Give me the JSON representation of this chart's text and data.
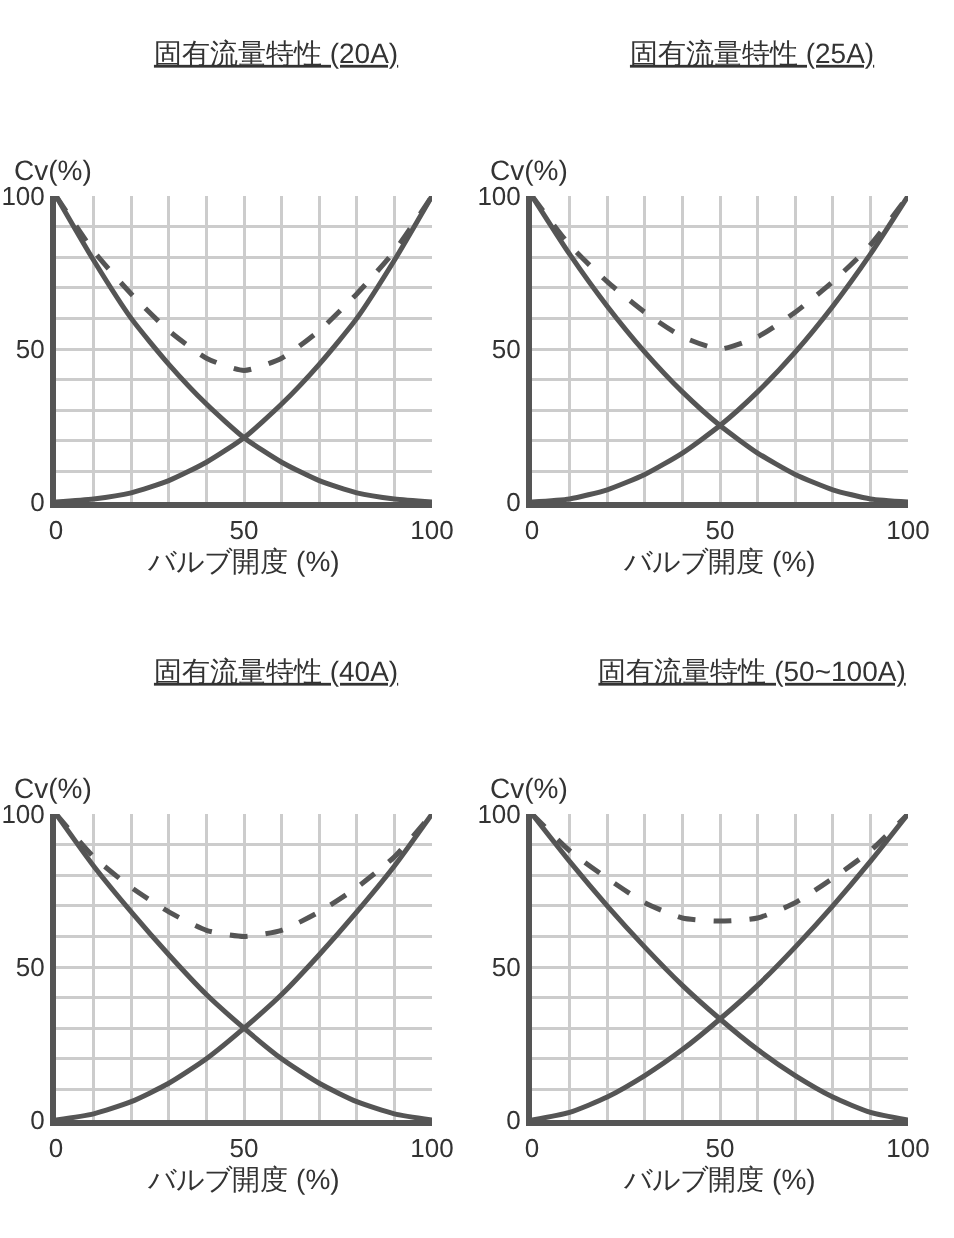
{
  "chart_data": [
    {
      "type": "line",
      "title": "固有流量特性 (20A)",
      "ylabel": "Cv(%)",
      "xlabel": "バルブ開度 (%)",
      "x": [
        0,
        10,
        20,
        30,
        40,
        50,
        60,
        70,
        80,
        90,
        100
      ],
      "xlim": [
        0,
        100
      ],
      "ylim": [
        0,
        100
      ],
      "xticks": [
        0,
        {
          "value": 10,
          "label": null
        },
        {
          "value": 20,
          "label": null
        },
        {
          "value": 30,
          "label": null
        },
        {
          "value": 40,
          "label": null
        },
        50,
        {
          "value": 60,
          "label": null
        },
        {
          "value": 70,
          "label": null
        },
        {
          "value": 80,
          "label": null
        },
        {
          "value": 90,
          "label": null
        },
        100
      ],
      "yticks": [
        0,
        {
          "value": 10,
          "label": null
        },
        {
          "value": 20,
          "label": null
        },
        {
          "value": 30,
          "label": null
        },
        {
          "value": 40,
          "label": null
        },
        50,
        {
          "value": 60,
          "label": null
        },
        {
          "value": 70,
          "label": null
        },
        {
          "value": 80,
          "label": null
        },
        {
          "value": 90,
          "label": null
        },
        100
      ],
      "grid": true,
      "series": [
        {
          "color": "#555555",
          "values": [
            0,
            1,
            3,
            7,
            13,
            21,
            32,
            45,
            60,
            79,
            100
          ]
        },
        {
          "color": "#555555",
          "values": [
            100,
            79,
            60,
            45,
            32,
            21,
            13,
            7,
            3,
            1,
            0
          ]
        },
        {
          "color": "#555555",
          "line_style": "dashed",
          "values": [
            100,
            82,
            68,
            56,
            47,
            43,
            47,
            56,
            68,
            82,
            100
          ]
        }
      ]
    },
    {
      "type": "line",
      "title": "固有流量特性 (25A)",
      "ylabel": "Cv(%)",
      "xlabel": "バルブ開度 (%)",
      "x": [
        0,
        10,
        20,
        30,
        40,
        50,
        60,
        70,
        80,
        90,
        100
      ],
      "xlim": [
        0,
        100
      ],
      "ylim": [
        0,
        100
      ],
      "xticks": [
        0,
        {
          "value": 10,
          "label": null
        },
        {
          "value": 20,
          "label": null
        },
        {
          "value": 30,
          "label": null
        },
        {
          "value": 40,
          "label": null
        },
        50,
        {
          "value": 60,
          "label": null
        },
        {
          "value": 70,
          "label": null
        },
        {
          "value": 80,
          "label": null
        },
        {
          "value": 90,
          "label": null
        },
        100
      ],
      "yticks": [
        0,
        {
          "value": 10,
          "label": null
        },
        {
          "value": 20,
          "label": null
        },
        {
          "value": 30,
          "label": null
        },
        {
          "value": 40,
          "label": null
        },
        50,
        {
          "value": 60,
          "label": null
        },
        {
          "value": 70,
          "label": null
        },
        {
          "value": 80,
          "label": null
        },
        {
          "value": 90,
          "label": null
        },
        100
      ],
      "grid": true,
      "series": [
        {
          "color": "#555555",
          "values": [
            0,
            1,
            4,
            9,
            16,
            25,
            36,
            49,
            64,
            81,
            100
          ]
        },
        {
          "color": "#555555",
          "values": [
            100,
            81,
            64,
            49,
            36,
            25,
            16,
            9,
            4,
            1,
            0
          ]
        },
        {
          "color": "#555555",
          "line_style": "dashed",
          "values": [
            100,
            84,
            72,
            62,
            54,
            50,
            54,
            62,
            72,
            84,
            100
          ]
        }
      ]
    },
    {
      "type": "line",
      "title": "固有流量特性 (40A)",
      "ylabel": "Cv(%)",
      "xlabel": "バルブ開度 (%)",
      "x": [
        0,
        10,
        20,
        30,
        40,
        50,
        60,
        70,
        80,
        90,
        100
      ],
      "xlim": [
        0,
        100
      ],
      "ylim": [
        0,
        100
      ],
      "xticks": [
        0,
        {
          "value": 10,
          "label": null
        },
        {
          "value": 20,
          "label": null
        },
        {
          "value": 30,
          "label": null
        },
        {
          "value": 40,
          "label": null
        },
        50,
        {
          "value": 60,
          "label": null
        },
        {
          "value": 70,
          "label": null
        },
        {
          "value": 80,
          "label": null
        },
        {
          "value": 90,
          "label": null
        },
        100
      ],
      "yticks": [
        0,
        {
          "value": 10,
          "label": null
        },
        {
          "value": 20,
          "label": null
        },
        {
          "value": 30,
          "label": null
        },
        {
          "value": 40,
          "label": null
        },
        50,
        {
          "value": 60,
          "label": null
        },
        {
          "value": 70,
          "label": null
        },
        {
          "value": 80,
          "label": null
        },
        {
          "value": 90,
          "label": null
        },
        100
      ],
      "grid": true,
      "series": [
        {
          "color": "#555555",
          "values": [
            0,
            2,
            6,
            12,
            20,
            30,
            41,
            54,
            68,
            83,
            100
          ]
        },
        {
          "color": "#555555",
          "values": [
            100,
            83,
            68,
            54,
            41,
            30,
            20,
            12,
            6,
            2,
            0
          ]
        },
        {
          "color": "#555555",
          "line_style": "dashed",
          "values": [
            100,
            86,
            76,
            68,
            62,
            60,
            62,
            68,
            76,
            86,
            100
          ]
        }
      ]
    },
    {
      "type": "line",
      "title": "固有流量特性 (50~100A)",
      "ylabel": "Cv(%)",
      "xlabel": "バルブ開度 (%)",
      "x": [
        0,
        10,
        20,
        30,
        40,
        50,
        60,
        70,
        80,
        90,
        100
      ],
      "xlim": [
        0,
        100
      ],
      "ylim": [
        0,
        100
      ],
      "xticks": [
        0,
        {
          "value": 10,
          "label": null
        },
        {
          "value": 20,
          "label": null
        },
        {
          "value": 30,
          "label": null
        },
        {
          "value": 40,
          "label": null
        },
        50,
        {
          "value": 60,
          "label": null
        },
        {
          "value": 70,
          "label": null
        },
        {
          "value": 80,
          "label": null
        },
        {
          "value": 90,
          "label": null
        },
        100
      ],
      "yticks": [
        0,
        {
          "value": 10,
          "label": null
        },
        {
          "value": 20,
          "label": null
        },
        {
          "value": 30,
          "label": null
        },
        {
          "value": 40,
          "label": null
        },
        50,
        {
          "value": 60,
          "label": null
        },
        {
          "value": 70,
          "label": null
        },
        {
          "value": 80,
          "label": null
        },
        {
          "value": 90,
          "label": null
        },
        100
      ],
      "grid": true,
      "series": [
        {
          "color": "#555555",
          "values": [
            0,
            2.5,
            7.5,
            14.5,
            23,
            33,
            44,
            56.5,
            70,
            84.5,
            100
          ]
        },
        {
          "color": "#555555",
          "values": [
            100,
            84.5,
            70,
            56.5,
            44,
            33,
            23,
            14.5,
            7.5,
            2.5,
            0
          ]
        },
        {
          "color": "#555555",
          "line_style": "dashed",
          "values": [
            100,
            88,
            79,
            71,
            66,
            65,
            66,
            71,
            79,
            88,
            100
          ]
        }
      ]
    }
  ]
}
